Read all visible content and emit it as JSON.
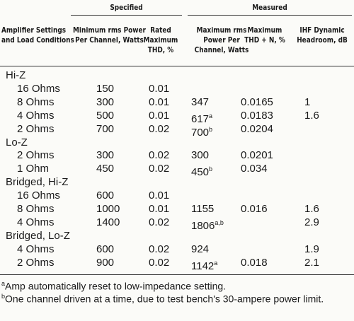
{
  "table": {
    "groups": [
      "Specified",
      "Measured"
    ],
    "columns": [
      "Amplifier Settings and Load Conditions",
      "Minimum rms Power Per Channel, Watts",
      "Rated Maximum THD, %",
      "Maximum rms Power Per Channel, Watts",
      "Maximum THD + N, %",
      "IHF Dynamic Headroom, dB"
    ],
    "sections": [
      {
        "label": "Hi-Z",
        "rows": [
          [
            "16 Ohms",
            "150",
            "0.01",
            null,
            null,
            null
          ],
          [
            "8 Ohms",
            "300",
            "0.01",
            "347",
            "0.0165",
            "1"
          ],
          [
            "4 Ohms",
            "500",
            "0.01",
            {
              "text": "617",
              "note": "a"
            },
            "0.0183",
            "1.6"
          ],
          [
            "2 Ohms",
            "700",
            "0.02",
            {
              "text": "700",
              "note": "b"
            },
            "0.0204",
            null
          ]
        ]
      },
      {
        "label": "Lo-Z",
        "rows": [
          [
            "2 Ohms",
            "300",
            "0.02",
            "300",
            "0.0201",
            null
          ],
          [
            "1 Ohm",
            "450",
            "0.02",
            {
              "text": "450",
              "note": "b"
            },
            "0.034",
            null
          ]
        ]
      },
      {
        "label": "Bridged, Hi-Z",
        "rows": [
          [
            "16 Ohms",
            "600",
            "0.01",
            null,
            null,
            null
          ],
          [
            "8 Ohms",
            "1000",
            "0.01",
            "1155",
            "0.016",
            "1.6"
          ],
          [
            "4 Ohms",
            "1400",
            "0.02",
            {
              "text": "1806",
              "note": "a,b"
            },
            null,
            "2.9"
          ]
        ]
      },
      {
        "label": "Bridged, Lo-Z",
        "rows": [
          [
            "4 Ohms",
            "600",
            "0.02",
            "924",
            null,
            "1.9"
          ],
          [
            "2 Ohms",
            "900",
            "0.02",
            {
              "text": "1142",
              "note": "a"
            },
            "0.018",
            "2.1"
          ]
        ]
      }
    ]
  },
  "footnotes": [
    {
      "mark": "a",
      "text": "Amp automatically reset to low-impedance setting."
    },
    {
      "mark": "b",
      "text": "One channel driven at a time, due to test bench's 30-ampere power limit."
    }
  ]
}
